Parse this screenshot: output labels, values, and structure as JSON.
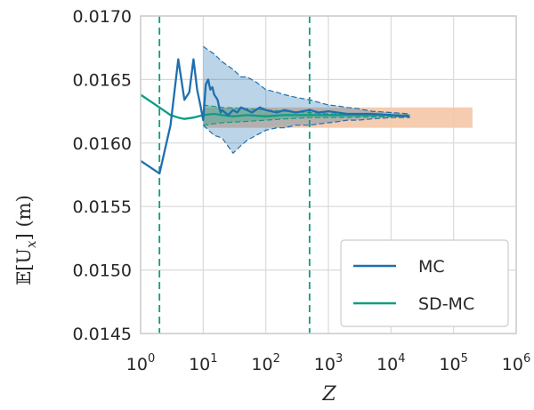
{
  "chart_data": {
    "type": "line",
    "xlabel": "Z",
    "ylabel": "𝔼[U",
    "ylabel_sub": "x",
    "ylabel_tail": "] (m)",
    "xscale": "log",
    "xlim": [
      1,
      1000000
    ],
    "ylim": [
      0.0145,
      0.017
    ],
    "x_ticks": [
      {
        "value": 1,
        "base": "10",
        "exp": "0"
      },
      {
        "value": 10,
        "base": "10",
        "exp": "1"
      },
      {
        "value": 100,
        "base": "10",
        "exp": "2"
      },
      {
        "value": 1000,
        "base": "10",
        "exp": "3"
      },
      {
        "value": 10000,
        "base": "10",
        "exp": "4"
      },
      {
        "value": 100000,
        "base": "10",
        "exp": "5"
      },
      {
        "value": 1000000,
        "base": "10",
        "exp": "6"
      }
    ],
    "y_ticks": [
      {
        "value": 0.0145,
        "label": "0.0145"
      },
      {
        "value": 0.015,
        "label": "0.0150"
      },
      {
        "value": 0.0155,
        "label": "0.0155"
      },
      {
        "value": 0.016,
        "label": "0.0160"
      },
      {
        "value": 0.0165,
        "label": "0.0165"
      },
      {
        "value": 0.017,
        "label": "0.0170"
      }
    ],
    "grid": true,
    "legend_position": "lower-right",
    "reference_band": {
      "x": [
        10,
        200000
      ],
      "y": [
        0.01612,
        0.01628
      ],
      "color": "#f4c7a6"
    },
    "vertical_lines": [
      2,
      500
    ],
    "vertical_line_color": "#0b9e82",
    "series": [
      {
        "name": "MC",
        "color": "#1f6fb0",
        "x": [
          1,
          2,
          3,
          4,
          5,
          6,
          7,
          8,
          9,
          10,
          11,
          12,
          13,
          14,
          15,
          16,
          17,
          18,
          19,
          20,
          25,
          30,
          35,
          40,
          50,
          60,
          80,
          100,
          150,
          200,
          300,
          500,
          700,
          1000,
          2000,
          5000,
          10000,
          20000
        ],
        "values": [
          0.01586,
          0.01576,
          0.01614,
          0.01666,
          0.01634,
          0.0164,
          0.01666,
          0.01642,
          0.0163,
          0.01618,
          0.01646,
          0.0165,
          0.01642,
          0.01644,
          0.01638,
          0.01636,
          0.01634,
          0.01628,
          0.01624,
          0.01626,
          0.01622,
          0.01626,
          0.01624,
          0.01628,
          0.01626,
          0.01624,
          0.01628,
          0.01626,
          0.01624,
          0.01626,
          0.01624,
          0.01626,
          0.01624,
          0.01625,
          0.01623,
          0.01623,
          0.01622,
          0.01621
        ]
      },
      {
        "name": "SD-MC",
        "color": "#0b9e82",
        "x": [
          1,
          2,
          3,
          4,
          5,
          7,
          10,
          15,
          20,
          30,
          50,
          100,
          200,
          500,
          1000,
          2000,
          5000,
          10000,
          20000
        ],
        "values": [
          0.01638,
          0.01628,
          0.01622,
          0.0162,
          0.01619,
          0.0162,
          0.01622,
          0.01623,
          0.01622,
          0.01621,
          0.01622,
          0.01621,
          0.01622,
          0.01622,
          0.01622,
          0.01622,
          0.01622,
          0.01622,
          0.01621
        ]
      }
    ],
    "mc_band": {
      "color": "#1f6fb0",
      "x": [
        10,
        15,
        20,
        30,
        40,
        50,
        70,
        100,
        150,
        200,
        300,
        500,
        700,
        1000,
        1500,
        2000,
        3000,
        5000,
        10000,
        20000
      ],
      "upper": [
        0.01676,
        0.0167,
        0.01664,
        0.01658,
        0.01652,
        0.01652,
        0.01648,
        0.01642,
        0.0164,
        0.01638,
        0.01636,
        0.01634,
        0.01632,
        0.0163,
        0.01629,
        0.01628,
        0.01627,
        0.01625,
        0.01624,
        0.01623
      ],
      "lower": [
        0.01614,
        0.01606,
        0.01604,
        0.01592,
        0.01598,
        0.01602,
        0.01606,
        0.0161,
        0.01612,
        0.01612,
        0.01614,
        0.01614,
        0.01615,
        0.01616,
        0.01617,
        0.01618,
        0.01618,
        0.01619,
        0.0162,
        0.0162
      ]
    },
    "sdmc_band": {
      "color": "#0b9e82",
      "x": [
        10,
        20,
        50,
        100,
        200,
        500,
        1000,
        20000
      ],
      "upper": [
        0.0163,
        0.01628,
        0.01627,
        0.01626,
        0.01625,
        0.01624,
        0.01623,
        0.01622
      ],
      "lower": [
        0.01614,
        0.01616,
        0.01617,
        0.01618,
        0.01619,
        0.0162,
        0.0162,
        0.01621
      ]
    }
  }
}
